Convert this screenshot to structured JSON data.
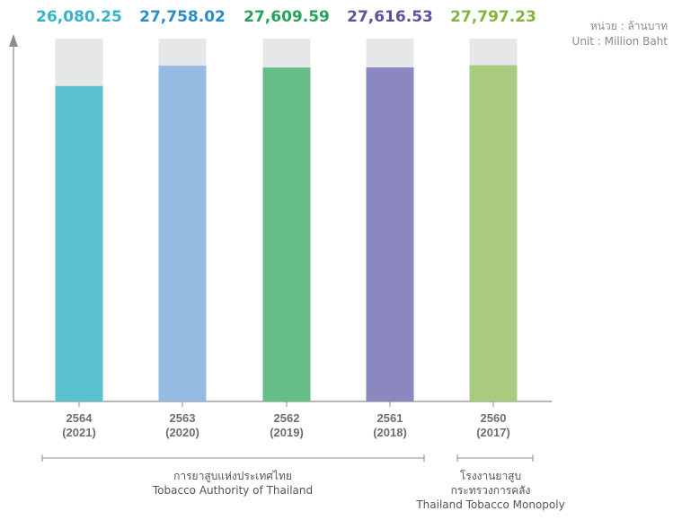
{
  "unit": {
    "thai": "หน่วย : ล้านบาท",
    "english": "Unit : Million Baht"
  },
  "chart_data": {
    "type": "bar",
    "title": "",
    "xlabel": "",
    "ylabel": "",
    "ylim": [
      0,
      30000
    ],
    "grid": false,
    "legend": "none",
    "categories": [
      {
        "thai_year": "2564",
        "year": "(2021)"
      },
      {
        "thai_year": "2563",
        "year": "(2020)"
      },
      {
        "thai_year": "2562",
        "year": "(2019)"
      },
      {
        "thai_year": "2561",
        "year": "(2018)"
      },
      {
        "thai_year": "2560",
        "year": "(2017)"
      }
    ],
    "values": [
      26080.25,
      27758.02,
      27609.59,
      27616.53,
      27797.23
    ],
    "value_labels": [
      "26,080.25",
      "27,758.02",
      "27,609.59",
      "27,616.53",
      "27,797.23"
    ],
    "colors": [
      "#5ac2cf",
      "#95bbe3",
      "#66bd87",
      "#8b88bf",
      "#a9cb80"
    ],
    "label_colors": [
      "#36b3c6",
      "#2b8dc7",
      "#27a25c",
      "#62509c",
      "#82b53b"
    ],
    "background_bar_color": "#e6e7e8"
  },
  "groups": [
    {
      "thai": "การยาสูบแห่งประเทศไทย",
      "english": "Tobacco Authority of Thailand"
    },
    {
      "thai": "โรงงานยาสูบ",
      "thai_line2": "กระทรวงการคลัง",
      "english": "Thailand Tobacco Monopoly"
    }
  ]
}
